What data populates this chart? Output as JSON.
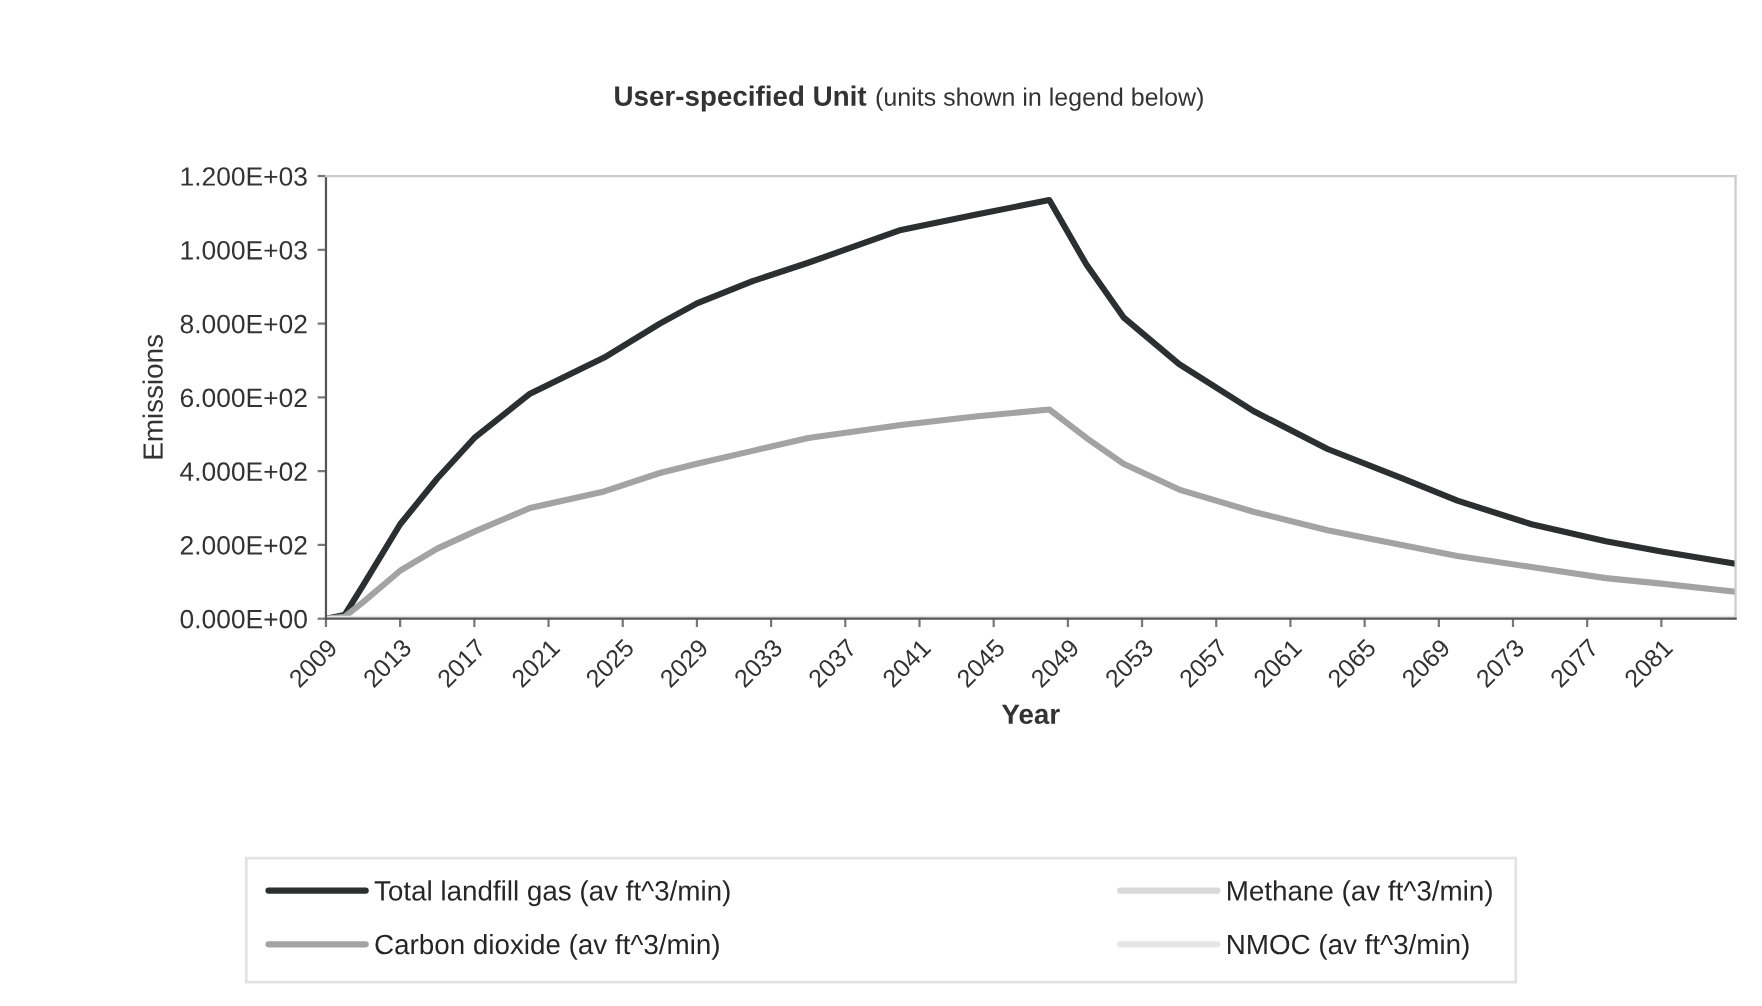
{
  "chart_data": {
    "type": "line",
    "title": "User-specified Unit",
    "subtitle": "(units shown in legend below)",
    "xlabel": "Year",
    "ylabel": "Emissions",
    "xlim": [
      2009,
      2085
    ],
    "xticks": [
      2009,
      2013,
      2017,
      2021,
      2025,
      2029,
      2033,
      2037,
      2041,
      2045,
      2049,
      2053,
      2057,
      2061,
      2065,
      2069,
      2073,
      2077,
      2081
    ],
    "ylim": [
      0,
      1200
    ],
    "yticks": [
      {
        "value": 0,
        "label": "0.000E+00"
      },
      {
        "value": 200,
        "label": "2.000E+02"
      },
      {
        "value": 400,
        "label": "4.000E+02"
      },
      {
        "value": 600,
        "label": "6.000E+02"
      },
      {
        "value": 800,
        "label": "8.000E+02"
      },
      {
        "value": 1000,
        "label": "1.000E+03"
      },
      {
        "value": 1200,
        "label": "1.200E+03"
      }
    ],
    "grid": false,
    "legend": "bottom",
    "marker": "none",
    "line_style": "solid",
    "series": [
      {
        "name": "Total landfill gas (av ft^3/min)",
        "color": "#2b2f2f",
        "x": [
          2009,
          2010,
          2011,
          2013,
          2015,
          2017,
          2020,
          2024,
          2027,
          2029,
          2032,
          2035,
          2040,
          2044,
          2048,
          2050,
          2052,
          2055,
          2059,
          2063,
          2067,
          2070,
          2074,
          2078,
          2081,
          2085
        ],
        "values": [
          0,
          10,
          90,
          256,
          380,
          490,
          610,
          708,
          800,
          855,
          915,
          965,
          1054,
          1095,
          1135,
          960,
          817,
          690,
          563,
          460,
          381,
          320,
          256,
          210,
          182,
          149
        ]
      },
      {
        "name": "Methane (av ft^3/min)",
        "color": "#d9d9d9"
      },
      {
        "name": "Carbon dioxide (av ft^3/min)",
        "color": "#a3a3a3",
        "x": [
          2009,
          2010,
          2011,
          2013,
          2015,
          2017,
          2020,
          2024,
          2027,
          2029,
          2032,
          2035,
          2040,
          2044,
          2048,
          2050,
          2052,
          2055,
          2059,
          2063,
          2067,
          2070,
          2074,
          2078,
          2081,
          2085
        ],
        "values": [
          0,
          5,
          45,
          130,
          190,
          236,
          300,
          345,
          395,
          420,
          455,
          490,
          525,
          548,
          567,
          490,
          420,
          350,
          290,
          240,
          200,
          170,
          140,
          110,
          95,
          73
        ]
      },
      {
        "name": "NMOC (av ft^3/min)",
        "color": "#e6e6e6",
        "x": [
          2009,
          2085
        ],
        "values": [
          0,
          0
        ]
      }
    ]
  }
}
